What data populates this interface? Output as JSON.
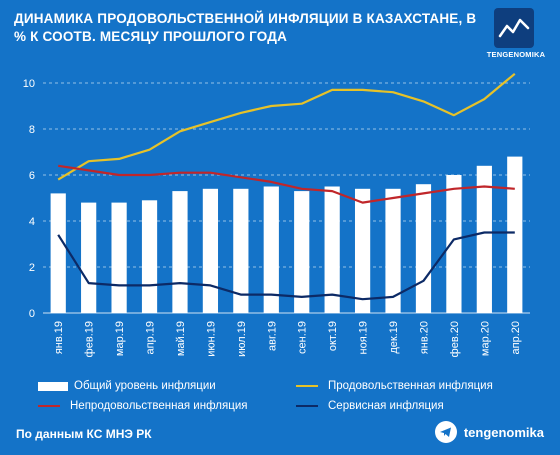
{
  "header": {
    "title_line1": "ДИНАМИКА ПРОДОВОЛЬСТВЕННОЙ ИНФЛЯЦИИ В КАЗАХСТАНЕ, В",
    "title_line2": "% К СООТВ. МЕСЯЦУ ПРОШЛОГО ГОДА",
    "logo_text": "TENGENOMIKA",
    "logo_icon": "trend-zigzag-icon"
  },
  "chart_data": {
    "type": "bar",
    "categories": [
      "янв.19",
      "фев.19",
      "мар.19",
      "апр.19",
      "май.19",
      "июн.19",
      "июл.19",
      "авг.19",
      "сен.19",
      "окт.19",
      "ноя.19",
      "дек.19",
      "янв.20",
      "фев.20",
      "мар.20",
      "апр.20"
    ],
    "ylim": [
      0,
      11
    ],
    "yticks": [
      "0",
      "2",
      "4",
      "6",
      "8",
      "10"
    ],
    "grid": true,
    "legend_position": "bottom",
    "series": [
      {
        "name": "Общий уровень инфляции",
        "kind": "bar",
        "color": "#ffffff",
        "values": [
          5.2,
          4.8,
          4.8,
          4.9,
          5.3,
          5.4,
          5.4,
          5.5,
          5.3,
          5.5,
          5.4,
          5.4,
          5.6,
          6.0,
          6.4,
          6.8
        ]
      },
      {
        "name": "Продовольственная инфляция",
        "kind": "line",
        "color": "#e6c229",
        "values": [
          5.8,
          6.6,
          6.7,
          7.1,
          7.9,
          8.3,
          8.7,
          9.0,
          9.1,
          9.7,
          9.7,
          9.6,
          9.2,
          8.6,
          9.3,
          10.4
        ]
      },
      {
        "name": "Непродовольственная инфляция",
        "kind": "line",
        "color": "#c0262a",
        "values": [
          6.4,
          6.2,
          6.0,
          6.0,
          6.1,
          6.1,
          5.9,
          5.7,
          5.4,
          5.3,
          4.8,
          5.0,
          5.2,
          5.4,
          5.5,
          5.4
        ]
      },
      {
        "name": "Сервисная инфляция",
        "kind": "line",
        "color": "#0c2a66",
        "values": [
          3.4,
          1.3,
          1.2,
          1.2,
          1.3,
          1.2,
          0.8,
          0.8,
          0.7,
          0.8,
          0.6,
          0.7,
          1.4,
          3.2,
          3.5,
          3.5
        ]
      }
    ]
  },
  "footer": {
    "source": "По данным КС МНЭ РК",
    "brand": "tengenomika",
    "brand_icon": "telegram-icon"
  }
}
